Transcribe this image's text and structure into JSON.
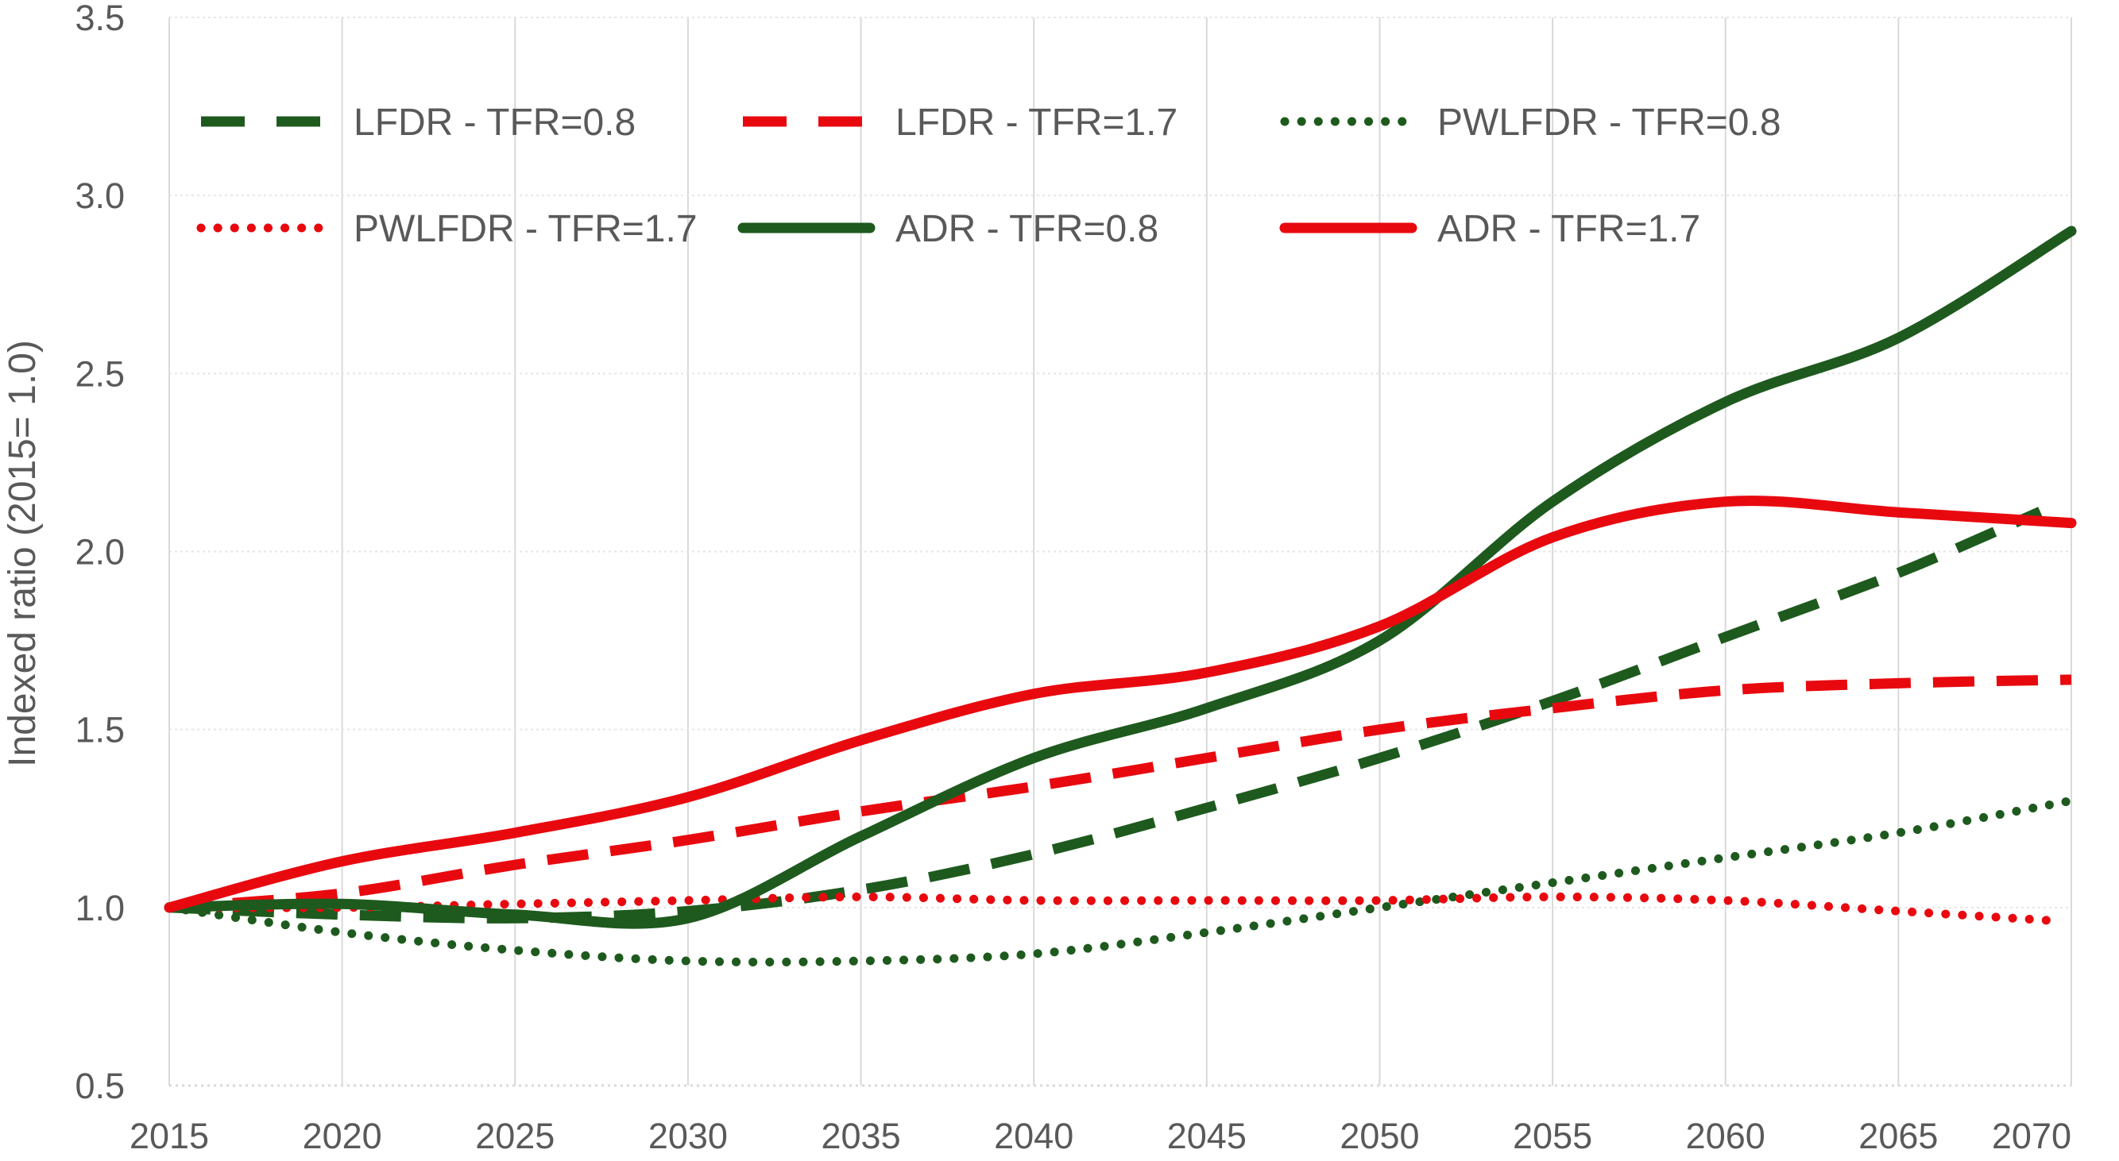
{
  "chart_data": {
    "type": "line",
    "title": "",
    "xlabel": "",
    "ylabel": "Indexed ratio (2015= 1.0)",
    "xlim": [
      2015,
      2070
    ],
    "ylim": [
      0.5,
      3.5
    ],
    "x_ticks": [
      "2015",
      "2020",
      "2025",
      "2030",
      "2035",
      "2040",
      "2045",
      "2050",
      "2055",
      "2060",
      "2065",
      "2070"
    ],
    "y_ticks": [
      "0.5",
      "1.0",
      "1.5",
      "2.0",
      "2.5",
      "3.0",
      "3.5"
    ],
    "grid": "vertical and horizontal, light gray",
    "legend_position": "top-left, inside plot, 3 columns",
    "colors": {
      "green": "#1E5A1E",
      "red": "#E8090F",
      "grid": "#D9D9D9",
      "text": "#595959"
    },
    "x": [
      2015,
      2020,
      2025,
      2030,
      2035,
      2040,
      2045,
      2050,
      2055,
      2060,
      2065,
      2070
    ],
    "series": [
      {
        "name": "LFDR - TFR=0.8",
        "color": "#1E5A1E",
        "style": "dashed",
        "values": [
          1.0,
          0.98,
          0.97,
          0.99,
          1.05,
          1.15,
          1.28,
          1.42,
          1.58,
          1.76,
          1.94,
          2.15
        ]
      },
      {
        "name": "LFDR - TFR=1.7",
        "color": "#E8090F",
        "style": "dashed",
        "values": [
          1.0,
          1.04,
          1.12,
          1.19,
          1.27,
          1.34,
          1.42,
          1.5,
          1.56,
          1.61,
          1.63,
          1.64
        ]
      },
      {
        "name": "PWLFDR - TFR=0.8",
        "color": "#1E5A1E",
        "style": "dotted",
        "values": [
          1.0,
          0.93,
          0.88,
          0.85,
          0.85,
          0.87,
          0.93,
          1.0,
          1.07,
          1.14,
          1.21,
          1.3
        ]
      },
      {
        "name": "PWLFDR - TFR=1.7",
        "color": "#E8090F",
        "style": "dotted",
        "values": [
          1.0,
          1.0,
          1.01,
          1.02,
          1.03,
          1.02,
          1.02,
          1.02,
          1.03,
          1.02,
          0.99,
          0.96
        ]
      },
      {
        "name": "ADR - TFR=0.8",
        "color": "#1E5A1E",
        "style": "solid",
        "values": [
          1.0,
          1.01,
          0.98,
          0.97,
          1.2,
          1.42,
          1.56,
          1.75,
          2.14,
          2.42,
          2.6,
          2.9
        ]
      },
      {
        "name": "ADR  - TFR=1.7",
        "color": "#E8090F",
        "style": "solid",
        "values": [
          1.0,
          1.13,
          1.21,
          1.31,
          1.47,
          1.6,
          1.66,
          1.79,
          2.04,
          2.14,
          2.11,
          2.08
        ]
      }
    ]
  }
}
